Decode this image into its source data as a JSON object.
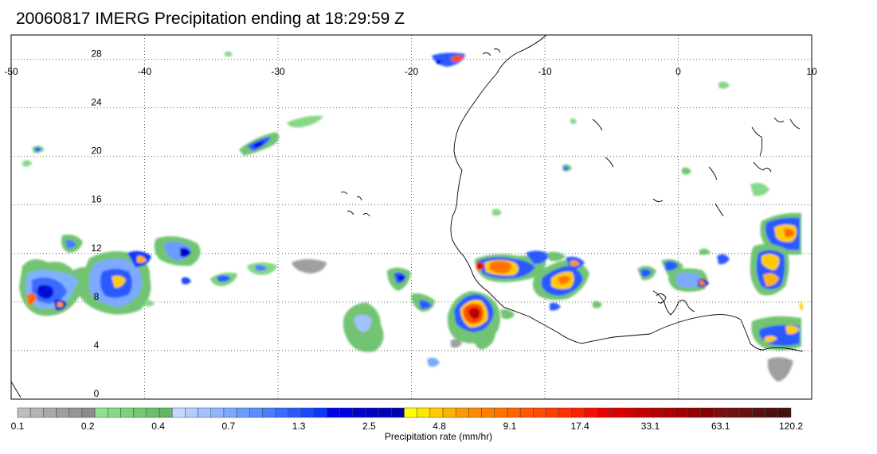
{
  "title": "20060817 IMERG Precipitation ending at 18:29:59 Z",
  "map": {
    "lon_range": [
      -50,
      10
    ],
    "lat_range": [
      0,
      30
    ],
    "lon_ticks": [
      -50,
      -40,
      -30,
      -20,
      -10,
      0,
      10
    ],
    "lat_ticks": [
      0,
      4,
      8,
      12,
      16,
      20,
      24,
      28
    ],
    "grid": "dotted",
    "coastline_color": "#000000"
  },
  "colorbar": {
    "label": "Precipitation rate (mm/hr)",
    "tick_labels": [
      "0.1",
      "0.2",
      "0.4",
      "0.7",
      "1.3",
      "2.5",
      "4.8",
      "9.1",
      "17.4",
      "33.1",
      "63.1",
      "120.2"
    ],
    "colors": [
      "#bdbdbd",
      "#b3b3b3",
      "#a9a9a9",
      "#9f9f9f",
      "#959595",
      "#8b8b8b",
      "#8fe08f",
      "#86d886",
      "#7dd07d",
      "#74c874",
      "#6bc06b",
      "#62b862",
      "#c6d8ff",
      "#b4cdff",
      "#a2c1ff",
      "#8fb5ff",
      "#7da9ff",
      "#6b9dff",
      "#5b8dff",
      "#4a7cff",
      "#3a6bff",
      "#2a5aff",
      "#1a49ff",
      "#0a38ff",
      "#0000f0",
      "#0000e0",
      "#0000d0",
      "#0000c4",
      "#0000b8",
      "#0000ac",
      "#ffff00",
      "#ffe600",
      "#ffcc00",
      "#ffb300",
      "#ff9900",
      "#ff8c00",
      "#ff8000",
      "#ff7300",
      "#ff6600",
      "#ff5900",
      "#ff4c00",
      "#ff3f00",
      "#ff2f00",
      "#ff1f00",
      "#f50f00",
      "#e80000",
      "#dc0000",
      "#d00000",
      "#c40000",
      "#b80000",
      "#ac0000",
      "#a00000",
      "#940000",
      "#880000",
      "#7c0c0c",
      "#701010",
      "#641010",
      "#581010",
      "#4c1010",
      "#401010"
    ]
  },
  "precipitation_cells": [
    {
      "lon": -47.5,
      "lat": 9.5,
      "level": 2
    },
    {
      "lon": -48.5,
      "lat": 8.2,
      "level": 4
    },
    {
      "lon": -45.5,
      "lat": 8.0,
      "level": 3
    },
    {
      "lon": -44.5,
      "lat": 12.5,
      "level": 1
    },
    {
      "lon": -41.8,
      "lat": 9.5,
      "level": 3
    },
    {
      "lon": -40.5,
      "lat": 11.5,
      "level": 2
    },
    {
      "lon": -38.5,
      "lat": 11.8,
      "level": 2
    },
    {
      "lon": -36.0,
      "lat": 12.2,
      "level": 1
    },
    {
      "lon": -32.5,
      "lat": 21.0,
      "level": 2
    },
    {
      "lon": -29.0,
      "lat": 22.4,
      "level": 0
    },
    {
      "lon": -22.5,
      "lat": 6.5,
      "level": 0
    },
    {
      "lon": -20.5,
      "lat": 9.5,
      "level": 2
    },
    {
      "lon": -19.0,
      "lat": 7.8,
      "level": 1
    },
    {
      "lon": -15.0,
      "lat": 7.0,
      "level": 5
    },
    {
      "lon": -14.2,
      "lat": 5.0,
      "level": 0
    },
    {
      "lon": -12.0,
      "lat": 11.3,
      "level": 4
    },
    {
      "lon": -8.5,
      "lat": 10.0,
      "level": 3
    },
    {
      "lon": -7.5,
      "lat": 11.2,
      "level": 3
    },
    {
      "lon": -1.5,
      "lat": 10.2,
      "level": 1
    },
    {
      "lon": 1.5,
      "lat": 9.8,
      "level": 2
    },
    {
      "lon": 7.8,
      "lat": 10.0,
      "level": 3
    },
    {
      "lon": 9.0,
      "lat": 13.8,
      "level": 3
    },
    {
      "lon": 8.2,
      "lat": 5.5,
      "level": 2
    },
    {
      "lon": -17.5,
      "lat": 28.5,
      "level": 2
    }
  ]
}
